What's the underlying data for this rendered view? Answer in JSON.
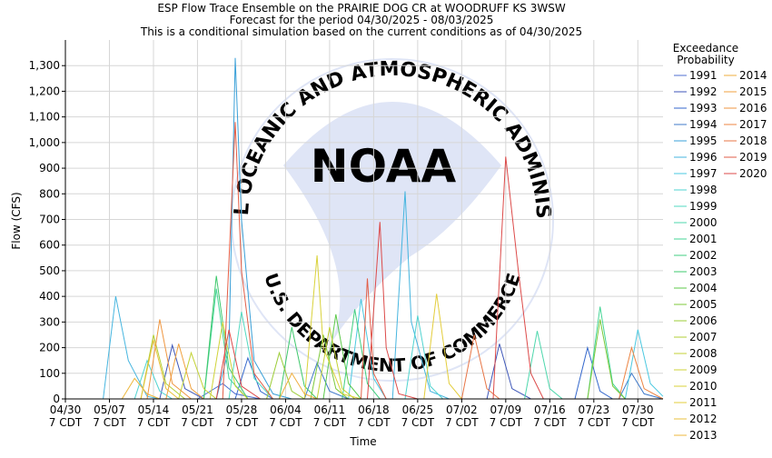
{
  "chart_data": {
    "type": "line",
    "title_lines": [
      "ESP Flow Trace Ensemble on the PRAIRIE DOG CR at WOODRUFF KS 3WSW",
      "Forecast for the period 04/30/2025 - 08/03/2025",
      "This is a conditional simulation based on the current conditions as of 04/30/2025"
    ],
    "xlabel": "Time",
    "ylabel": "Flow (CFS)",
    "ylim": [
      0,
      1400
    ],
    "yticks": [
      0,
      100,
      200,
      300,
      400,
      500,
      600,
      700,
      800,
      900,
      1000,
      1100,
      1200,
      1300
    ],
    "ytick_labels": [
      "0",
      "100",
      "200",
      "300",
      "400",
      "500",
      "600",
      "700",
      "800",
      "900",
      "1,000",
      "1,100",
      "1,200",
      "1,300"
    ],
    "xlim": [
      "2025-04-30",
      "2025-08-03"
    ],
    "xticks": [
      "04/30",
      "05/07",
      "05/14",
      "05/21",
      "05/28",
      "06/04",
      "06/11",
      "06/18",
      "06/25",
      "07/02",
      "07/09",
      "07/16",
      "07/23",
      "07/30"
    ],
    "xtick_sublabel": "7 CDT",
    "grid": true,
    "legend_title": [
      "Exceedance",
      "Probability"
    ],
    "legend_placement": "right",
    "background_watermark": {
      "text_top": "NATIONAL OCEANIC AND ATMOSPHERIC ADMINISTRATION",
      "text_bottom": "U.S. DEPARTMENT OF COMMERCE",
      "center_text": "NOAA",
      "color": "#dfe5f6"
    },
    "series": [
      {
        "name": "1991",
        "color": "#4f6fd1",
        "points": [
          [
            "04/30",
            0
          ],
          [
            "05/21",
            0
          ],
          [
            "05/25",
            60
          ],
          [
            "05/27",
            20
          ],
          [
            "05/31",
            0
          ],
          [
            "08/03",
            0
          ]
        ]
      },
      {
        "name": "1992",
        "color": "#3d56b8",
        "points": [
          [
            "04/30",
            0
          ],
          [
            "05/15",
            0
          ],
          [
            "05/17",
            210
          ],
          [
            "05/19",
            40
          ],
          [
            "05/22",
            0
          ],
          [
            "07/06",
            0
          ],
          [
            "07/08",
            215
          ],
          [
            "07/10",
            40
          ],
          [
            "07/13",
            0
          ],
          [
            "08/03",
            0
          ]
        ]
      },
      {
        "name": "1993",
        "color": "#3367cc",
        "points": [
          [
            "04/30",
            0
          ],
          [
            "05/27",
            0
          ],
          [
            "05/29",
            160
          ],
          [
            "05/31",
            30
          ],
          [
            "06/02",
            0
          ],
          [
            "07/20",
            0
          ],
          [
            "07/22",
            200
          ],
          [
            "07/24",
            30
          ],
          [
            "07/26",
            0
          ],
          [
            "08/03",
            0
          ]
        ]
      },
      {
        "name": "1994",
        "color": "#3f79c9",
        "points": [
          [
            "04/30",
            0
          ],
          [
            "06/07",
            0
          ],
          [
            "06/09",
            140
          ],
          [
            "06/11",
            30
          ],
          [
            "06/14",
            0
          ],
          [
            "07/27",
            0
          ],
          [
            "07/29",
            100
          ],
          [
            "07/31",
            20
          ],
          [
            "08/03",
            0
          ]
        ]
      },
      {
        "name": "1995",
        "color": "#3aa0d8",
        "points": [
          [
            "04/30",
            0
          ],
          [
            "05/24",
            0
          ],
          [
            "05/26",
            200
          ],
          [
            "05/27",
            1330
          ],
          [
            "05/28",
            700
          ],
          [
            "05/30",
            150
          ],
          [
            "06/02",
            20
          ],
          [
            "06/05",
            0
          ],
          [
            "08/03",
            0
          ]
        ]
      },
      {
        "name": "1996",
        "color": "#46b5df",
        "points": [
          [
            "04/30",
            0
          ],
          [
            "05/06",
            0
          ],
          [
            "05/08",
            400
          ],
          [
            "05/10",
            150
          ],
          [
            "05/13",
            10
          ],
          [
            "05/15",
            0
          ],
          [
            "06/21",
            0
          ],
          [
            "06/23",
            810
          ],
          [
            "06/24",
            300
          ],
          [
            "06/27",
            30
          ],
          [
            "06/30",
            0
          ],
          [
            "08/03",
            0
          ]
        ]
      },
      {
        "name": "1997",
        "color": "#4ac8e0",
        "points": [
          [
            "04/30",
            0
          ],
          [
            "06/14",
            0
          ],
          [
            "06/16",
            390
          ],
          [
            "06/18",
            80
          ],
          [
            "06/20",
            0
          ],
          [
            "07/28",
            0
          ],
          [
            "07/30",
            270
          ],
          [
            "08/01",
            60
          ],
          [
            "08/03",
            10
          ]
        ]
      },
      {
        "name": "1998",
        "color": "#4fd3d0",
        "points": [
          [
            "04/30",
            0
          ],
          [
            "05/11",
            0
          ],
          [
            "05/13",
            150
          ],
          [
            "05/15",
            30
          ],
          [
            "05/17",
            0
          ],
          [
            "06/23",
            0
          ],
          [
            "06/25",
            325
          ],
          [
            "06/27",
            50
          ],
          [
            "06/29",
            0
          ],
          [
            "08/03",
            0
          ]
        ]
      },
      {
        "name": "1999",
        "color": "#52d8c0",
        "points": [
          [
            "04/30",
            0
          ],
          [
            "05/26",
            0
          ],
          [
            "05/28",
            340
          ],
          [
            "05/30",
            80
          ],
          [
            "06/02",
            0
          ],
          [
            "08/03",
            0
          ]
        ]
      },
      {
        "name": "2000",
        "color": "#4dd7ac",
        "points": [
          [
            "04/30",
            0
          ],
          [
            "07/12",
            0
          ],
          [
            "07/14",
            265
          ],
          [
            "07/16",
            40
          ],
          [
            "07/18",
            0
          ],
          [
            "08/03",
            0
          ]
        ]
      },
      {
        "name": "2001",
        "color": "#45d596",
        "points": [
          [
            "04/30",
            0
          ],
          [
            "05/22",
            0
          ],
          [
            "05/24",
            430
          ],
          [
            "05/26",
            80
          ],
          [
            "05/29",
            0
          ],
          [
            "07/22",
            0
          ],
          [
            "07/24",
            360
          ],
          [
            "07/26",
            60
          ],
          [
            "07/28",
            0
          ],
          [
            "08/03",
            0
          ]
        ]
      },
      {
        "name": "2002",
        "color": "#41cf80",
        "points": [
          [
            "04/30",
            0
          ],
          [
            "06/13",
            0
          ],
          [
            "06/15",
            350
          ],
          [
            "06/17",
            60
          ],
          [
            "06/19",
            0
          ],
          [
            "08/03",
            0
          ]
        ]
      },
      {
        "name": "2003",
        "color": "#3ec86c",
        "points": [
          [
            "04/30",
            0
          ],
          [
            "05/22",
            0
          ],
          [
            "05/24",
            480
          ],
          [
            "05/26",
            120
          ],
          [
            "05/29",
            0
          ],
          [
            "06/03",
            0
          ],
          [
            "06/05",
            280
          ],
          [
            "06/07",
            50
          ],
          [
            "06/09",
            0
          ],
          [
            "08/03",
            0
          ]
        ]
      },
      {
        "name": "2004",
        "color": "#5cc94a",
        "points": [
          [
            "04/30",
            0
          ],
          [
            "06/10",
            0
          ],
          [
            "06/12",
            330
          ],
          [
            "06/14",
            60
          ],
          [
            "06/16",
            0
          ],
          [
            "08/03",
            0
          ]
        ]
      },
      {
        "name": "2005",
        "color": "#7cc93a",
        "points": [
          [
            "04/30",
            0
          ],
          [
            "06/08",
            0
          ],
          [
            "06/10",
            250
          ],
          [
            "06/12",
            40
          ],
          [
            "06/14",
            0
          ],
          [
            "07/22",
            0
          ],
          [
            "07/24",
            310
          ],
          [
            "07/26",
            50
          ],
          [
            "07/28",
            0
          ],
          [
            "08/03",
            0
          ]
        ]
      },
      {
        "name": "2006",
        "color": "#9bcc37",
        "points": [
          [
            "04/30",
            0
          ],
          [
            "06/01",
            0
          ],
          [
            "06/03",
            180
          ],
          [
            "06/05",
            30
          ],
          [
            "06/07",
            0
          ],
          [
            "08/03",
            0
          ]
        ]
      },
      {
        "name": "2007",
        "color": "#b2cf35",
        "points": [
          [
            "04/30",
            0
          ],
          [
            "05/12",
            0
          ],
          [
            "05/14",
            250
          ],
          [
            "05/16",
            60
          ],
          [
            "05/19",
            0
          ],
          [
            "08/03",
            0
          ]
        ]
      },
      {
        "name": "2008",
        "color": "#c3d235",
        "points": [
          [
            "04/30",
            0
          ],
          [
            "05/18",
            0
          ],
          [
            "05/20",
            180
          ],
          [
            "05/22",
            40
          ],
          [
            "05/24",
            0
          ],
          [
            "06/09",
            0
          ],
          [
            "06/11",
            280
          ],
          [
            "06/13",
            40
          ],
          [
            "06/15",
            0
          ],
          [
            "08/03",
            0
          ]
        ]
      },
      {
        "name": "2009",
        "color": "#cfd338",
        "points": [
          [
            "04/30",
            0
          ],
          [
            "05/23",
            0
          ],
          [
            "05/25",
            300
          ],
          [
            "05/27",
            50
          ],
          [
            "05/29",
            0
          ],
          [
            "08/03",
            0
          ]
        ]
      },
      {
        "name": "2010",
        "color": "#d9d23a",
        "points": [
          [
            "04/30",
            0
          ],
          [
            "06/07",
            0
          ],
          [
            "06/09",
            560
          ],
          [
            "06/10",
            200
          ],
          [
            "06/13",
            20
          ],
          [
            "06/16",
            0
          ],
          [
            "08/03",
            0
          ]
        ]
      },
      {
        "name": "2011",
        "color": "#e3cd3b",
        "points": [
          [
            "04/30",
            0
          ],
          [
            "06/26",
            0
          ],
          [
            "06/28",
            410
          ],
          [
            "06/30",
            60
          ],
          [
            "07/02",
            0
          ],
          [
            "08/03",
            0
          ]
        ]
      },
      {
        "name": "2012",
        "color": "#e8c23c",
        "points": [
          [
            "04/30",
            0
          ],
          [
            "05/12",
            0
          ],
          [
            "05/14",
            230
          ],
          [
            "05/16",
            40
          ],
          [
            "05/18",
            0
          ],
          [
            "08/03",
            0
          ]
        ]
      },
      {
        "name": "2013",
        "color": "#ecb73d",
        "points": [
          [
            "04/30",
            0
          ],
          [
            "05/09",
            0
          ],
          [
            "05/11",
            80
          ],
          [
            "05/13",
            20
          ],
          [
            "05/15",
            0
          ],
          [
            "08/03",
            0
          ]
        ]
      },
      {
        "name": "2014",
        "color": "#efae3e",
        "points": [
          [
            "04/30",
            0
          ],
          [
            "06/03",
            0
          ],
          [
            "06/05",
            100
          ],
          [
            "06/07",
            20
          ],
          [
            "06/09",
            0
          ],
          [
            "08/03",
            0
          ]
        ]
      },
      {
        "name": "2015",
        "color": "#f0a23f",
        "points": [
          [
            "04/30",
            0
          ],
          [
            "05/16",
            0
          ],
          [
            "05/18",
            215
          ],
          [
            "05/20",
            40
          ],
          [
            "05/22",
            0
          ],
          [
            "08/03",
            0
          ]
        ]
      },
      {
        "name": "2016",
        "color": "#ef9640",
        "points": [
          [
            "04/30",
            0
          ],
          [
            "05/13",
            0
          ],
          [
            "05/15",
            310
          ],
          [
            "05/17",
            60
          ],
          [
            "05/20",
            0
          ],
          [
            "08/03",
            0
          ]
        ]
      },
      {
        "name": "2017",
        "color": "#ec8442",
        "points": [
          [
            "04/30",
            0
          ],
          [
            "07/27",
            0
          ],
          [
            "07/29",
            200
          ],
          [
            "07/31",
            40
          ],
          [
            "08/03",
            0
          ]
        ]
      },
      {
        "name": "2018",
        "color": "#e77445",
        "points": [
          [
            "04/30",
            0
          ],
          [
            "07/02",
            0
          ],
          [
            "07/04",
            250
          ],
          [
            "07/06",
            40
          ],
          [
            "07/08",
            0
          ],
          [
            "08/03",
            0
          ]
        ]
      },
      {
        "name": "2019",
        "color": "#e25e47",
        "points": [
          [
            "04/30",
            0
          ],
          [
            "05/25",
            0
          ],
          [
            "05/27",
            1080
          ],
          [
            "05/28",
            500
          ],
          [
            "05/30",
            100
          ],
          [
            "06/02",
            0
          ],
          [
            "06/16",
            0
          ],
          [
            "06/17",
            470
          ],
          [
            "06/18",
            100
          ],
          [
            "06/20",
            0
          ],
          [
            "08/03",
            0
          ]
        ]
      },
      {
        "name": "2020",
        "color": "#dc4a49",
        "points": [
          [
            "04/30",
            0
          ],
          [
            "05/24",
            0
          ],
          [
            "05/26",
            270
          ],
          [
            "05/28",
            50
          ],
          [
            "05/31",
            0
          ],
          [
            "06/17",
            0
          ],
          [
            "06/19",
            690
          ],
          [
            "06/20",
            200
          ],
          [
            "06/22",
            20
          ],
          [
            "06/25",
            0
          ],
          [
            "07/07",
            0
          ],
          [
            "07/09",
            945
          ],
          [
            "07/11",
            500
          ],
          [
            "07/13",
            100
          ],
          [
            "07/15",
            0
          ],
          [
            "08/03",
            0
          ]
        ]
      }
    ]
  }
}
